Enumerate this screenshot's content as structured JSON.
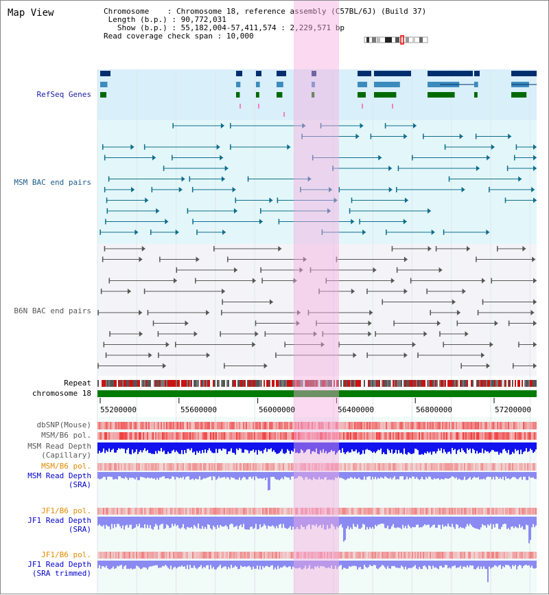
{
  "title": "Map View",
  "info": {
    "chromosome_label": "Chromosome",
    "chromosome_value": "Chromosome 18, reference assembly (C57BL/6J) (Build 37)",
    "length_label": "Length (b.p.)",
    "length_value": "90,772,031",
    "show_label": "Show (b.p.)",
    "show_value": "55,182,004-57,411,574 : 2,229,571 bp",
    "span_label": "Read coverage check span",
    "span_value": "10,000"
  },
  "tracks": {
    "refseq": "RefSeq Genes",
    "msm_bac": "MSM BAC end pairs",
    "b6n_bac": "B6N BAC end pairs",
    "repeat": "Repeat",
    "chromosome": "chromosome 18",
    "dbsnp": "dbSNP(Mouse)",
    "msm_pol": "MSM/B6 pol.",
    "msm_depth_cap_1": "MSM Read Depth",
    "msm_depth_cap_2": "(Capillary)",
    "msm_pol2": "MSM/B6 pol.",
    "msm_depth_sra_1": "MSM Read Depth",
    "msm_depth_sra_2": "(SRA)",
    "jf1_pol": "JF1/B6 pol.",
    "jf1_depth_sra_1": "JF1 Read Depth",
    "jf1_depth_sra_2": "(SRA)",
    "jf1_pol2": "JF1/B6 pol.",
    "jf1_depth_trim_1": "JF1 Read Depth",
    "jf1_depth_trim_2": "(SRA trimmed)"
  },
  "axis_ticks": [
    "55200000",
    "55600000",
    "56000000",
    "56400000",
    "56800000",
    "57200000"
  ],
  "colors": {
    "refseq_bg": "#d9effa",
    "msm_bg": "#e3f7fa",
    "b6n_bg": "#f4f4f8",
    "highlight": "#f9d4f0",
    "chromosome": "#007a00",
    "gene_navy": "#002e6e",
    "gene_mid": "#3d8bbd",
    "gene_green": "#006a00",
    "msm_line": "#0e6c8c",
    "b6n_line": "#555555",
    "snp_red": "#ef4b4b",
    "depth_blue": "#1212ee",
    "depth_lt": "#8a8af2"
  }
}
